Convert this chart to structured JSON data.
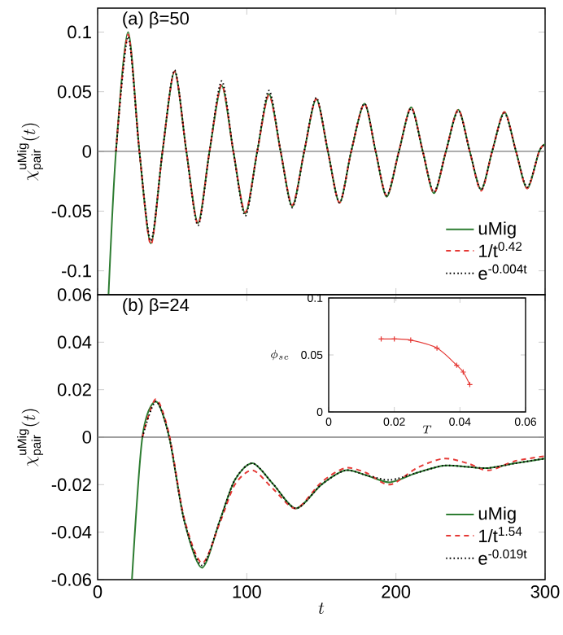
{
  "chart_data": [
    {
      "type": "line",
      "annotations": [
        "(a) β=50"
      ],
      "ylabel": "\\chi^{\\rm uMig}_{\\rm pair}(t)",
      "xlim": [
        0,
        300
      ],
      "xticks": [
        0,
        100,
        200,
        300
      ],
      "ylim": [
        -0.12,
        0.12
      ],
      "yticks": [
        -0.1,
        -0.05,
        0,
        0.05,
        0.1
      ],
      "tick_labels": "y",
      "legend": "bottom right",
      "ref_lines": [
        {
          "axis": "y",
          "value": 0,
          "color": "#808080"
        }
      ],
      "series": [
        {
          "name": "uMig",
          "color": "#2e7d32",
          "line_style": "solid",
          "x": [
            7.3,
            12.3,
            20.4,
            28,
            35.7,
            43.5,
            51.6,
            59.5,
            67.3,
            75,
            83.2,
            91,
            99,
            107,
            114.9,
            122.7,
            130.5,
            138.5,
            146.6,
            154.4,
            162.2,
            170,
            178.9,
            186.4,
            193.8,
            202,
            210.2,
            218,
            225.5,
            233.5,
            241.8,
            249.5,
            257.1,
            264.5,
            272.7,
            280.5,
            288,
            296,
            300
          ],
          "values": [
            -0.12,
            0,
            0.1,
            0,
            -0.077,
            0,
            0.067,
            0,
            -0.06,
            0,
            0.055,
            0,
            -0.052,
            0,
            0.048,
            0,
            -0.046,
            0,
            0.044,
            0,
            -0.043,
            0,
            0.04,
            0,
            -0.038,
            0,
            0.037,
            0,
            -0.035,
            0,
            0.035,
            0,
            -0.032,
            0,
            0.033,
            0,
            -0.031,
            0,
            0.006
          ]
        },
        {
          "name": "1/t$^{0.42}$",
          "color": "#e53935",
          "line_style": "dashed",
          "x": [
            12.3,
            20.4,
            28,
            35.7,
            43.5,
            51.6,
            59.5,
            67.3,
            75,
            83.2,
            91,
            99,
            107,
            114.9,
            122.7,
            130.5,
            138.5,
            146.6,
            154.4,
            162.2,
            170,
            178.9,
            186.4,
            193.8,
            202,
            210.2,
            218,
            225.5,
            233.5,
            241.8,
            249.5,
            257.1,
            264.5,
            272.7,
            280.5,
            288,
            296,
            300
          ],
          "values": [
            0,
            0.098,
            0,
            -0.078,
            0,
            0.067,
            0,
            -0.061,
            0,
            0.056,
            0,
            -0.051,
            0,
            0.047,
            0,
            -0.045,
            0,
            0.044,
            0,
            -0.043,
            0,
            0.04,
            0,
            -0.037,
            0,
            0.037,
            0,
            -0.035,
            0,
            0.035,
            0,
            -0.033,
            0,
            0.033,
            0,
            -0.031,
            0,
            0.006
          ]
        },
        {
          "name": "e$^{-0.004t}$",
          "color": "#000000",
          "line_style": "dotted",
          "x": [
            12.3,
            20.4,
            28,
            35.7,
            43.5,
            51.6,
            59.5,
            67.3,
            75,
            83.2,
            91,
            99,
            107,
            114.9,
            122.7,
            130.5,
            138.5,
            146.6,
            154.4,
            162.2,
            170,
            178.9,
            186.4,
            193.8,
            202,
            210.2,
            218,
            225.5,
            233.5,
            241.8,
            249.5,
            257.1,
            264.5,
            272.7,
            280.5,
            288,
            296,
            300
          ],
          "values": [
            0,
            0.096,
            0,
            -0.075,
            0,
            0.068,
            0,
            -0.062,
            0,
            0.059,
            0,
            -0.054,
            0,
            0.051,
            0,
            -0.047,
            0,
            0.045,
            0,
            -0.043,
            0,
            0.04,
            0,
            -0.037,
            0,
            0.036,
            0,
            -0.034,
            0,
            0.034,
            0,
            -0.032,
            0,
            0.032,
            0,
            -0.03,
            0,
            0.006
          ]
        }
      ]
    },
    {
      "type": "line",
      "annotations": [
        "(b) β=24"
      ],
      "xlabel": "t",
      "ylabel": "\\chi^{\\rm uMig}_{\\rm pair}(t)",
      "xlim": [
        0,
        300
      ],
      "xticks": [
        0,
        100,
        200,
        300
      ],
      "ylim": [
        -0.06,
        0.06
      ],
      "yticks": [
        -0.06,
        -0.04,
        -0.02,
        0,
        0.02,
        0.04,
        0.06
      ],
      "legend": "bottom right",
      "ref_lines": [
        {
          "axis": "y",
          "value": 0,
          "color": "#808080"
        }
      ],
      "series": [
        {
          "name": "uMig",
          "color": "#2e7d32",
          "line_style": "solid",
          "x": [
            23,
            30,
            39,
            48,
            58,
            70,
            82,
            92,
            104,
            118,
            133,
            150,
            166,
            180,
            196,
            214,
            232,
            248,
            262,
            280,
            300
          ],
          "values": [
            -0.06,
            0,
            0.015,
            0,
            -0.035,
            -0.055,
            -0.035,
            -0.018,
            -0.011,
            -0.02,
            -0.03,
            -0.02,
            -0.014,
            -0.016,
            -0.019,
            -0.015,
            -0.012,
            -0.0125,
            -0.013,
            -0.011,
            -0.009
          ]
        },
        {
          "name": "1/t$^{1.54}$",
          "color": "#e53935",
          "line_style": "dashed",
          "x": [
            30,
            39,
            48,
            58,
            70,
            82,
            92,
            104,
            118,
            133,
            150,
            166,
            180,
            196,
            214,
            232,
            248,
            262,
            280,
            300
          ],
          "values": [
            0,
            0.016,
            0.001,
            -0.034,
            -0.053,
            -0.036,
            -0.02,
            -0.014,
            -0.022,
            -0.03,
            -0.019,
            -0.013,
            -0.015,
            -0.02,
            -0.013,
            -0.009,
            -0.011,
            -0.014,
            -0.01,
            -0.008
          ]
        },
        {
          "name": "e$^{-0.019t}$",
          "color": "#000000",
          "line_style": "dotted",
          "x": [
            30,
            39,
            48,
            58,
            70,
            82,
            92,
            104,
            118,
            133,
            150,
            166,
            180,
            196,
            214,
            232,
            248,
            262,
            280,
            300
          ],
          "values": [
            0,
            0.015,
            0,
            -0.035,
            -0.054,
            -0.035,
            -0.018,
            -0.011,
            -0.02,
            -0.03,
            -0.02,
            -0.014,
            -0.016,
            -0.018,
            -0.015,
            -0.012,
            -0.0125,
            -0.013,
            -0.011,
            -0.009
          ]
        }
      ]
    },
    {
      "type": "line",
      "xlabel": "T",
      "ylabel": "\\phi_{sc}",
      "xlim": [
        0,
        0.06
      ],
      "xticks": [
        0,
        0.02,
        0.04,
        0.06
      ],
      "ylim": [
        0,
        0.1
      ],
      "yticks": [
        0,
        0.05,
        0.1
      ],
      "marker": "cross",
      "series": [
        {
          "color": "#e53935",
          "line_style": "solid",
          "x": [
            0.016,
            0.02,
            0.025,
            0.033,
            0.039,
            0.041,
            0.043
          ],
          "values": [
            0.064,
            0.064,
            0.063,
            0.056,
            0.041,
            0.035,
            0.024
          ]
        }
      ]
    }
  ]
}
